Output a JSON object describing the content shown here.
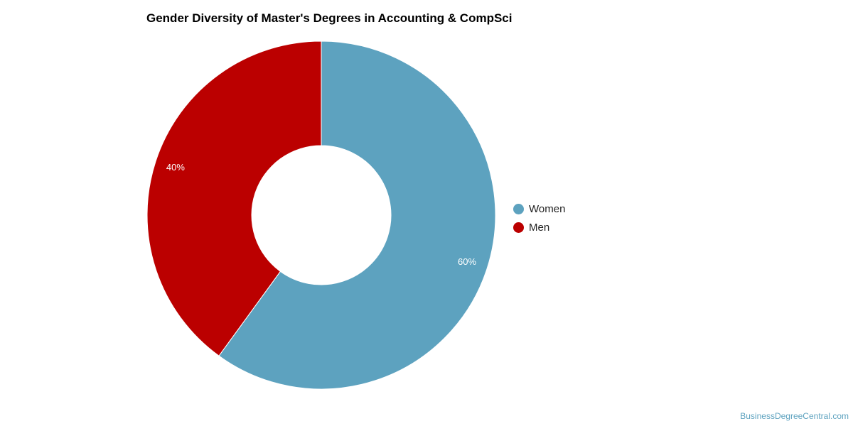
{
  "chart_data": {
    "type": "pie",
    "donut": true,
    "title": "Gender Diversity of Master's Degrees in Accounting & CompSci",
    "categories": [
      "Women",
      "Men"
    ],
    "values": [
      60,
      40
    ],
    "labels": [
      "60%",
      "40%"
    ],
    "colors": [
      "#5da2bf",
      "#bb0000"
    ],
    "legend": "right"
  },
  "credit": "BusinessDegreeCentral.com"
}
